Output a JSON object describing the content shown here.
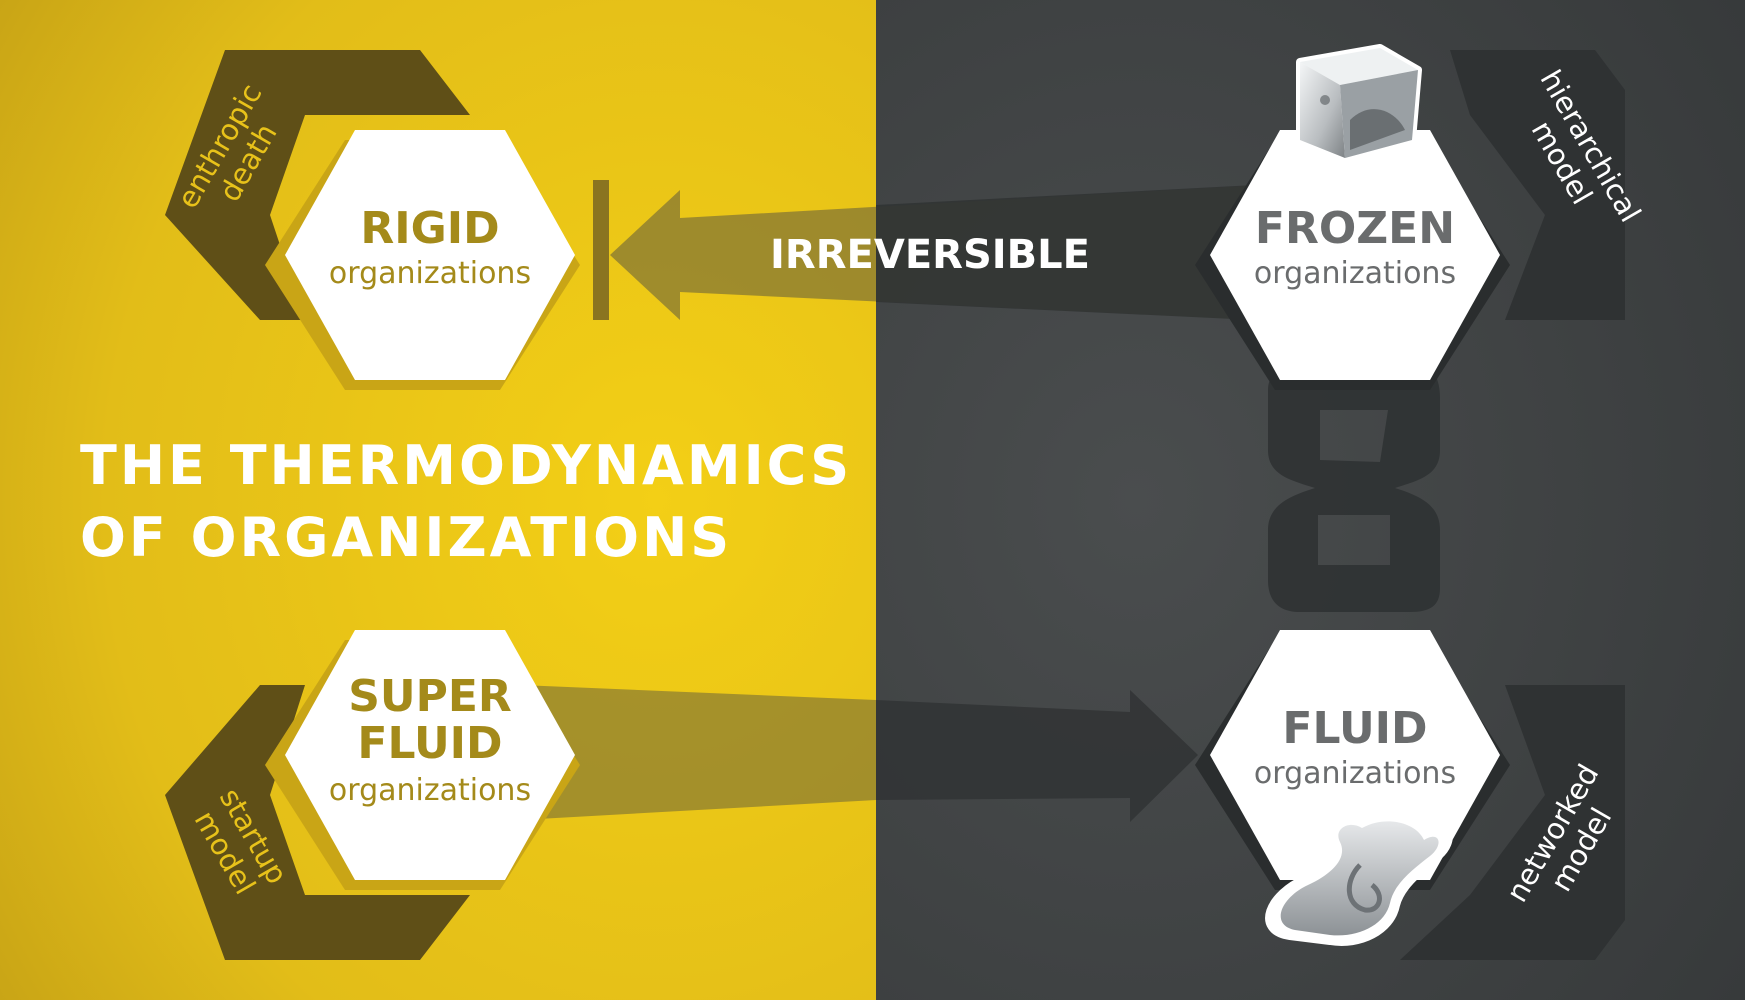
{
  "title": {
    "line1": "THE THERMODYNAMICS",
    "line2": "OF ORGANIZATIONS"
  },
  "arrow_top_label": "IRREVERSIBLE",
  "nodes": {
    "rigid": {
      "name": "RIGID",
      "sub": "organizations",
      "side_line1": "enthropic",
      "side_line2": "death"
    },
    "frozen": {
      "name": "FROZEN",
      "sub": "organizations",
      "side_line1": "hierarchical",
      "side_line2": "model",
      "icon": "ice-cube-icon"
    },
    "superfluid": {
      "name_line1": "SUPER",
      "name_line2": "FLUID",
      "sub": "organizations",
      "side_line1": "startup",
      "side_line2": "model"
    },
    "fluid": {
      "name": "FLUID",
      "sub": "organizations",
      "side_line1": "networked",
      "side_line2": "model",
      "icon": "liquid-splash-icon"
    }
  },
  "loop_icon": "infinity-loop-icon",
  "colors": {
    "yellow": "#e8c21a",
    "dark": "#3c3f40",
    "chevron_left": "#5f4f17",
    "chevron_right": "#2f3233",
    "label_yellow": "#a48a1a",
    "label_gray": "#6a6c6d",
    "white": "#ffffff"
  }
}
